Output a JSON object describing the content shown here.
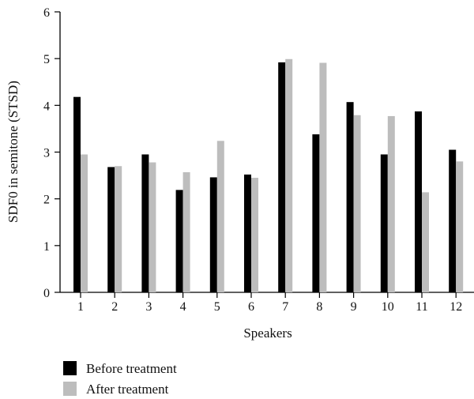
{
  "chart_data": {
    "type": "bar",
    "title": "",
    "xlabel": "Speakers",
    "ylabel": "SDF0 in semitone (STSD)",
    "ylim": [
      0,
      6
    ],
    "yticks": [
      "0",
      "1",
      "2",
      "3",
      "4",
      "5",
      "6"
    ],
    "categories": [
      "1",
      "2",
      "3",
      "4",
      "5",
      "6",
      "7",
      "8",
      "9",
      "10",
      "11",
      "12"
    ],
    "grid": false,
    "legend_position": "bottom-left",
    "series": [
      {
        "name": "Before treatment",
        "color": "#000000",
        "values": [
          4.18,
          2.68,
          2.95,
          2.19,
          2.46,
          2.52,
          4.92,
          3.38,
          4.07,
          2.95,
          3.87,
          3.05
        ]
      },
      {
        "name": "After treatment",
        "color": "#bdbdbd",
        "values": [
          2.95,
          2.7,
          2.78,
          2.57,
          3.24,
          2.45,
          4.99,
          4.91,
          3.79,
          3.77,
          2.14,
          2.8
        ]
      }
    ]
  }
}
